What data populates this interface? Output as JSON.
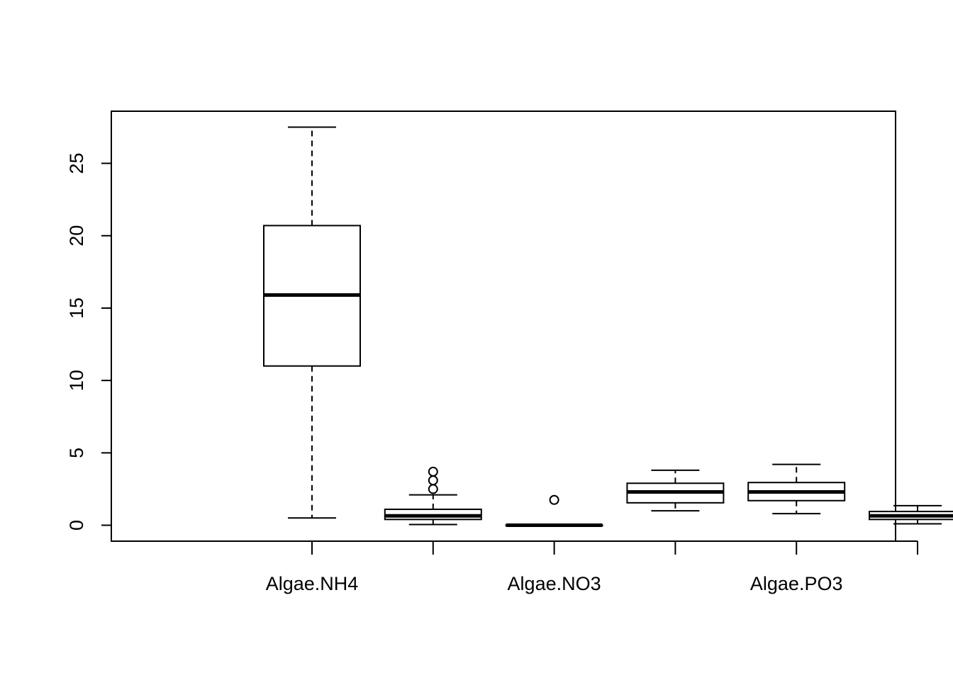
{
  "chart_data": {
    "type": "boxplot",
    "title": "",
    "xlabel": "",
    "ylabel": "",
    "ylim": [
      -1.1,
      28.6
    ],
    "yticks": [
      0,
      5,
      10,
      15,
      20,
      25
    ],
    "ytick_labels": [
      "0",
      "5",
      "10",
      "15",
      "20",
      "25"
    ],
    "categories": [
      "Algae.NH4",
      "",
      "Algae.NO3",
      "",
      "Algae.PO3",
      ""
    ],
    "boxes": [
      {
        "label": "Algae.NH4",
        "whisker_low": 0.5,
        "q1": 11.0,
        "median": 15.9,
        "q3": 20.7,
        "whisker_high": 27.5,
        "outliers": []
      },
      {
        "label": "",
        "whisker_low": 0.05,
        "q1": 0.4,
        "median": 0.65,
        "q3": 1.1,
        "whisker_high": 2.1,
        "outliers": [
          2.5,
          3.1,
          3.7
        ]
      },
      {
        "label": "Algae.NO3",
        "whisker_low": 0.0,
        "q1": 0.0,
        "median": 0.0,
        "q3": 0.0,
        "whisker_high": 0.0,
        "outliers": [
          1.75
        ]
      },
      {
        "label": "",
        "whisker_low": 1.0,
        "q1": 1.55,
        "median": 2.3,
        "q3": 2.9,
        "whisker_high": 3.8,
        "outliers": []
      },
      {
        "label": "Algae.PO3",
        "whisker_low": 0.8,
        "q1": 1.7,
        "median": 2.3,
        "q3": 2.95,
        "whisker_high": 4.2,
        "outliers": []
      },
      {
        "label": "",
        "whisker_low": 0.1,
        "q1": 0.4,
        "median": 0.65,
        "q3": 0.95,
        "whisker_high": 1.35,
        "outliers": []
      }
    ],
    "grid": false,
    "legend": "none"
  }
}
